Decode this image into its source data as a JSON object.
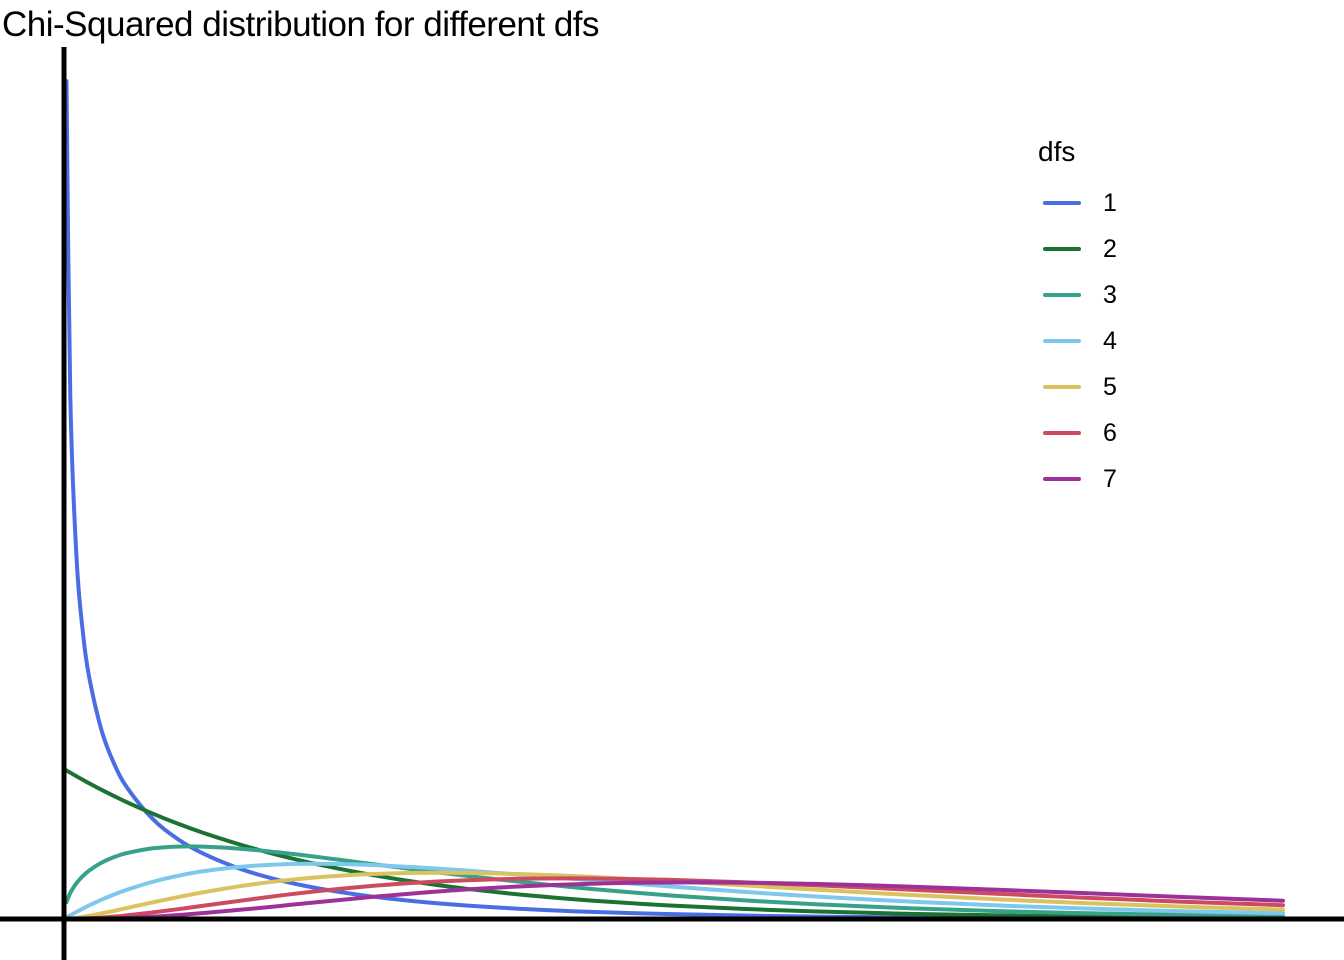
{
  "title": "Chi-Squared distribution for different dfs",
  "legend": {
    "title": "dfs",
    "entries": [
      {
        "label": "1",
        "color": "#4A6EE2"
      },
      {
        "label": "2",
        "color": "#1B7233"
      },
      {
        "label": "3",
        "color": "#38A189"
      },
      {
        "label": "4",
        "color": "#7FC8EC"
      },
      {
        "label": "5",
        "color": "#D9C25F"
      },
      {
        "label": "6",
        "color": "#CC4B60"
      },
      {
        "label": "7",
        "color": "#9E3197"
      }
    ]
  },
  "chart_data": {
    "type": "line",
    "title": "Chi-Squared distribution for different dfs",
    "xlabel": "",
    "ylabel": "",
    "xlim": [
      0,
      10
    ],
    "ylim": [
      0,
      2.9
    ],
    "grid": false,
    "legend_position": "upper right",
    "legend_title": "dfs",
    "axis_color": "#000000",
    "x": [
      0.02,
      0.05,
      0.1,
      0.15,
      0.2,
      0.3,
      0.4,
      0.5,
      0.7,
      0.9,
      1.1,
      1.4,
      1.7,
      2.0,
      2.4,
      2.8,
      3.2,
      3.7,
      4.2,
      4.8,
      5.4,
      6.0,
      6.7,
      7.4,
      8.1,
      8.9,
      9.7
    ],
    "series": [
      {
        "name": "1",
        "df": 1,
        "color": "#4A6EE2",
        "values": [
          2.793,
          1.7401,
          1.2,
          0.9556,
          0.8072,
          0.6269,
          0.5164,
          0.4394,
          0.336,
          0.2681,
          0.2195,
          0.1674,
          0.1308,
          0.1038,
          0.0776,
          0.0588,
          0.045,
          0.0326,
          0.0238,
          0.0165,
          0.0115,
          0.0081,
          0.0054,
          0.0036,
          0.0024,
          0.0016,
          0.001
        ]
      },
      {
        "name": "2",
        "df": 2,
        "color": "#1B7233",
        "values": [
          0.495,
          0.4877,
          0.4756,
          0.4639,
          0.4524,
          0.4304,
          0.4094,
          0.3894,
          0.3523,
          0.3188,
          0.2885,
          0.2483,
          0.2137,
          0.1839,
          0.1506,
          0.1233,
          0.1009,
          0.0786,
          0.0612,
          0.0454,
          0.0336,
          0.0249,
          0.0175,
          0.0124,
          0.0087,
          0.0058,
          0.0039
        ]
      },
      {
        "name": "3",
        "df": 3,
        "color": "#38A189",
        "values": [
          0.0559,
          0.087,
          0.12,
          0.1433,
          0.1614,
          0.1881,
          0.2066,
          0.2197,
          0.2352,
          0.2413,
          0.2414,
          0.2344,
          0.2223,
          0.2076,
          0.1861,
          0.1646,
          0.1441,
          0.1207,
          0.1001,
          0.0793,
          0.0623,
          0.0487,
          0.0362,
          0.0268,
          0.0198,
          0.0139,
          0.0097
        ]
      },
      {
        "name": "4",
        "df": 4,
        "color": "#7FC8EC",
        "values": [
          0.005,
          0.0122,
          0.0238,
          0.0348,
          0.0452,
          0.0646,
          0.0819,
          0.0973,
          0.1233,
          0.1435,
          0.1587,
          0.1738,
          0.1817,
          0.1839,
          0.1807,
          0.1726,
          0.1615,
          0.1454,
          0.1286,
          0.1089,
          0.0907,
          0.0747,
          0.0588,
          0.0457,
          0.0353,
          0.026,
          0.019
        ]
      },
      {
        "name": "5",
        "df": 5,
        "color": "#D9C25F",
        "values": [
          0.0004,
          0.0015,
          0.004,
          0.0072,
          0.0108,
          0.0188,
          0.0275,
          0.0366,
          0.0549,
          0.0724,
          0.0885,
          0.1094,
          0.126,
          0.1384,
          0.1489,
          0.1536,
          0.1537,
          0.1488,
          0.1402,
          0.1269,
          0.1122,
          0.0973,
          0.0809,
          0.0662,
          0.0534,
          0.0412,
          0.0314
        ]
      },
      {
        "name": "6",
        "df": 6,
        "color": "#CC4B60",
        "values": [
          0.0,
          0.0002,
          0.0006,
          0.0013,
          0.0023,
          0.0048,
          0.0082,
          0.0122,
          0.0216,
          0.0323,
          0.0436,
          0.0608,
          0.0772,
          0.092,
          0.1084,
          0.1208,
          0.1292,
          0.1345,
          0.135,
          0.1306,
          0.1225,
          0.112,
          0.0984,
          0.0846,
          0.0714,
          0.0578,
          0.046
        ]
      },
      {
        "name": "7",
        "df": 7,
        "color": "#9E3197",
        "values": [
          0.0,
          0.0,
          0.0001,
          0.0002,
          0.0004,
          0.0011,
          0.0022,
          0.0037,
          0.0077,
          0.013,
          0.0195,
          0.0306,
          0.0428,
          0.0553,
          0.0715,
          0.086,
          0.0984,
          0.1101,
          0.1177,
          0.1218,
          0.1211,
          0.1168,
          0.1084,
          0.0979,
          0.0865,
          0.0734,
          0.061
        ]
      }
    ]
  }
}
